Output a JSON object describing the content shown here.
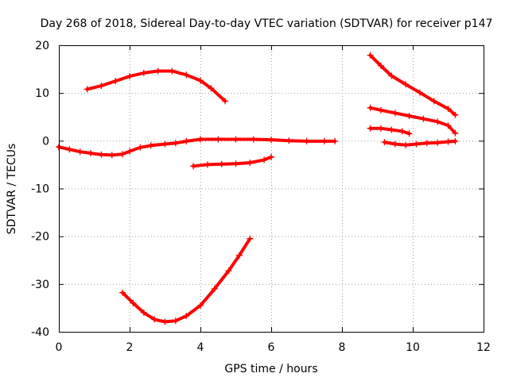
{
  "chart_data": {
    "type": "scatter",
    "title": "Day 268 of 2018, Sidereal Day-to-day VTEC variation (SDTVAR) for receiver p147",
    "xlabel": "GPS time / hours",
    "ylabel": "SDTVAR / TECUs",
    "xlim": [
      0,
      12
    ],
    "ylim": [
      -40,
      20
    ],
    "x_ticks": [
      0,
      2,
      4,
      6,
      8,
      10,
      12
    ],
    "y_ticks": [
      -40,
      -30,
      -20,
      -10,
      0,
      10,
      20
    ],
    "x_tick_labels": [
      "0",
      "2",
      "4",
      "6",
      "8",
      "10",
      "12"
    ],
    "y_tick_labels": [
      "-40",
      "-30",
      "-20",
      "-10",
      "0",
      "10",
      "20"
    ],
    "grid": true,
    "legend": "none",
    "marker": "plus",
    "color": "#ff0000",
    "series": [
      {
        "points": [
          [
            0.8,
            10.8
          ],
          [
            1.2,
            11.5
          ],
          [
            1.6,
            12.5
          ],
          [
            2.0,
            13.5
          ],
          [
            2.4,
            14.2
          ],
          [
            2.8,
            14.6
          ],
          [
            3.2,
            14.6
          ],
          [
            3.6,
            13.8
          ],
          [
            4.0,
            12.6
          ],
          [
            4.3,
            11.0
          ],
          [
            4.7,
            8.3
          ]
        ]
      },
      {
        "points": [
          [
            0,
            -1.3
          ],
          [
            0.3,
            -1.8
          ],
          [
            0.6,
            -2.3
          ],
          [
            0.9,
            -2.6
          ],
          [
            1.2,
            -2.9
          ],
          [
            1.5,
            -3.0
          ],
          [
            1.8,
            -2.8
          ],
          [
            2.0,
            -2.2
          ],
          [
            2.3,
            -1.4
          ],
          [
            2.6,
            -1.0
          ],
          [
            3.0,
            -0.7
          ],
          [
            3.3,
            -0.5
          ],
          [
            3.6,
            -0.1
          ],
          [
            4.0,
            0.3
          ],
          [
            4.5,
            0.3
          ],
          [
            5.0,
            0.3
          ],
          [
            5.5,
            0.3
          ],
          [
            6.0,
            0.2
          ],
          [
            6.5,
            0.0
          ],
          [
            7.0,
            -0.1
          ],
          [
            7.5,
            -0.1
          ],
          [
            7.8,
            -0.1
          ]
        ]
      },
      {
        "points": [
          [
            3.8,
            -5.3
          ],
          [
            4.2,
            -5.0
          ],
          [
            4.6,
            -4.9
          ],
          [
            5.0,
            -4.8
          ],
          [
            5.4,
            -4.6
          ],
          [
            5.8,
            -4.0
          ],
          [
            6.0,
            -3.4
          ]
        ]
      },
      {
        "points": [
          [
            1.8,
            -31.8
          ],
          [
            2.1,
            -34.0
          ],
          [
            2.4,
            -36.0
          ],
          [
            2.7,
            -37.4
          ],
          [
            3.0,
            -37.9
          ],
          [
            3.3,
            -37.7
          ],
          [
            3.6,
            -36.7
          ],
          [
            4.0,
            -34.5
          ],
          [
            4.4,
            -31.0
          ],
          [
            4.8,
            -27.2
          ],
          [
            5.1,
            -24.0
          ],
          [
            5.4,
            -20.5
          ]
        ]
      },
      {
        "points": [
          [
            8.8,
            17.9
          ],
          [
            9.1,
            15.7
          ],
          [
            9.4,
            13.6
          ],
          [
            9.8,
            11.8
          ],
          [
            10.2,
            10.1
          ],
          [
            10.6,
            8.3
          ],
          [
            11.0,
            6.7
          ],
          [
            11.2,
            5.4
          ]
        ]
      },
      {
        "points": [
          [
            8.8,
            6.9
          ],
          [
            9.1,
            6.4
          ],
          [
            9.5,
            5.8
          ],
          [
            9.9,
            5.2
          ],
          [
            10.3,
            4.6
          ],
          [
            10.7,
            4.0
          ],
          [
            11.0,
            3.2
          ],
          [
            11.2,
            1.6
          ]
        ]
      },
      {
        "points": [
          [
            8.8,
            2.6
          ],
          [
            9.1,
            2.6
          ],
          [
            9.4,
            2.3
          ],
          [
            9.7,
            2.0
          ],
          [
            9.9,
            1.5
          ]
        ]
      },
      {
        "points": [
          [
            9.2,
            -0.3
          ],
          [
            9.5,
            -0.7
          ],
          [
            9.8,
            -0.9
          ],
          [
            10.1,
            -0.7
          ],
          [
            10.4,
            -0.5
          ],
          [
            10.7,
            -0.4
          ],
          [
            11.0,
            -0.2
          ],
          [
            11.2,
            -0.1
          ]
        ]
      }
    ]
  }
}
